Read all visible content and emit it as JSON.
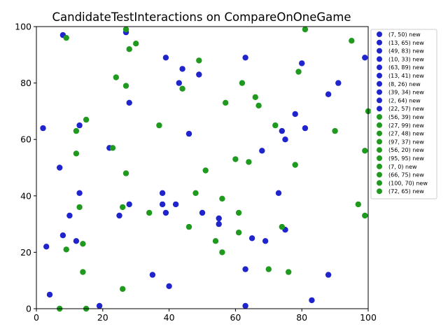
{
  "chart_data": {
    "type": "scatter",
    "title": "CandidateTestInteractions on CompareOnOneGame",
    "xlabel": "",
    "ylabel": "",
    "xlim": [
      0,
      100
    ],
    "ylim": [
      0,
      100
    ],
    "xticks": [
      0,
      20,
      40,
      60,
      80,
      100
    ],
    "yticks": [
      0,
      20,
      40,
      60,
      80,
      100
    ],
    "xtick_labels": [
      "0",
      "20",
      "40",
      "60",
      "80",
      "100"
    ],
    "ytick_labels": [
      "0",
      "20",
      "40",
      "60",
      "80",
      "100"
    ],
    "grid": false,
    "legend_placement": "outside-right-top",
    "series": [
      {
        "name": "(7, 50) new",
        "color": "#1f24cc",
        "points": [
          [
            8,
            97
          ],
          [
            27,
            98
          ],
          [
            39,
            89
          ],
          [
            63,
            89
          ],
          [
            99,
            89
          ],
          [
            44,
            85
          ],
          [
            80,
            87
          ],
          [
            49,
            83
          ],
          [
            43,
            80
          ],
          [
            91,
            80
          ],
          [
            88,
            76
          ],
          [
            28,
            73
          ],
          [
            78,
            69
          ],
          [
            13,
            65
          ],
          [
            2,
            64
          ],
          [
            81,
            64
          ],
          [
            74,
            63
          ],
          [
            46,
            62
          ],
          [
            75,
            60
          ],
          [
            22,
            57
          ],
          [
            68,
            56
          ],
          [
            7,
            50
          ],
          [
            13,
            41
          ],
          [
            38,
            41
          ],
          [
            73,
            41
          ],
          [
            28,
            37
          ],
          [
            38,
            37
          ],
          [
            42,
            37
          ],
          [
            39,
            34
          ],
          [
            50,
            34
          ],
          [
            10,
            33
          ],
          [
            25,
            33
          ],
          [
            55,
            32
          ],
          [
            55,
            30
          ],
          [
            75,
            28
          ],
          [
            8,
            26
          ],
          [
            65,
            25
          ],
          [
            12,
            24
          ],
          [
            69,
            24
          ],
          [
            3,
            22
          ],
          [
            63,
            14
          ],
          [
            35,
            12
          ],
          [
            88,
            12
          ],
          [
            40,
            8
          ],
          [
            4,
            5
          ],
          [
            83,
            3
          ],
          [
            19,
            1
          ],
          [
            63,
            1
          ]
        ]
      },
      {
        "name": "(13, 65) new",
        "color": "#1f24cc",
        "points": []
      },
      {
        "name": "(49, 83) new",
        "color": "#1f24cc",
        "points": []
      },
      {
        "name": "(10, 33) new",
        "color": "#1f24cc",
        "points": []
      },
      {
        "name": "(63, 89) new",
        "color": "#1f24cc",
        "points": []
      },
      {
        "name": "(13, 41) new",
        "color": "#1f24cc",
        "points": []
      },
      {
        "name": "(8, 26) new",
        "color": "#1f24cc",
        "points": []
      },
      {
        "name": "(39, 34) new",
        "color": "#1f24cc",
        "points": []
      },
      {
        "name": "(2, 64) new",
        "color": "#1f24cc",
        "points": []
      },
      {
        "name": "(22, 57) new",
        "color": "#1f24cc",
        "points": []
      },
      {
        "name": "(56, 39) new",
        "color": "#1f9a1f",
        "points": [
          [
            27,
            99
          ],
          [
            81,
            99
          ],
          [
            9,
            96
          ],
          [
            95,
            95
          ],
          [
            30,
            94
          ],
          [
            28,
            92
          ],
          [
            49,
            88
          ],
          [
            79,
            84
          ],
          [
            24,
            82
          ],
          [
            62,
            80
          ],
          [
            27,
            79
          ],
          [
            44,
            78
          ],
          [
            66,
            75
          ],
          [
            57,
            73
          ],
          [
            67,
            72
          ],
          [
            100,
            70
          ],
          [
            15,
            67
          ],
          [
            37,
            65
          ],
          [
            72,
            65
          ],
          [
            12,
            63
          ],
          [
            90,
            63
          ],
          [
            23,
            57
          ],
          [
            99,
            56
          ],
          [
            12,
            55
          ],
          [
            60,
            53
          ],
          [
            64,
            52
          ],
          [
            78,
            51
          ],
          [
            51,
            49
          ],
          [
            27,
            48
          ],
          [
            48,
            41
          ],
          [
            56,
            39
          ],
          [
            97,
            37
          ],
          [
            13,
            36
          ],
          [
            26,
            36
          ],
          [
            34,
            34
          ],
          [
            61,
            34
          ],
          [
            99,
            33
          ],
          [
            46,
            29
          ],
          [
            74,
            29
          ],
          [
            61,
            27
          ],
          [
            54,
            24
          ],
          [
            14,
            23
          ],
          [
            9,
            21
          ],
          [
            56,
            20
          ],
          [
            70,
            14
          ],
          [
            14,
            13
          ],
          [
            76,
            13
          ],
          [
            26,
            7
          ],
          [
            7,
            0
          ],
          [
            15,
            0
          ]
        ]
      },
      {
        "name": "(27, 99) new",
        "color": "#1f9a1f",
        "points": []
      },
      {
        "name": "(27, 48) new",
        "color": "#1f9a1f",
        "points": []
      },
      {
        "name": "(97, 37) new",
        "color": "#1f9a1f",
        "points": []
      },
      {
        "name": "(56, 20) new",
        "color": "#1f9a1f",
        "points": []
      },
      {
        "name": "(95, 95) new",
        "color": "#1f9a1f",
        "points": []
      },
      {
        "name": "(7, 0) new",
        "color": "#1f9a1f",
        "points": []
      },
      {
        "name": "(66, 75) new",
        "color": "#1f9a1f",
        "points": []
      },
      {
        "name": "(100, 70) new",
        "color": "#1f9a1f",
        "points": []
      },
      {
        "name": "(72, 65) new",
        "color": "#1f9a1f",
        "points": []
      }
    ]
  }
}
